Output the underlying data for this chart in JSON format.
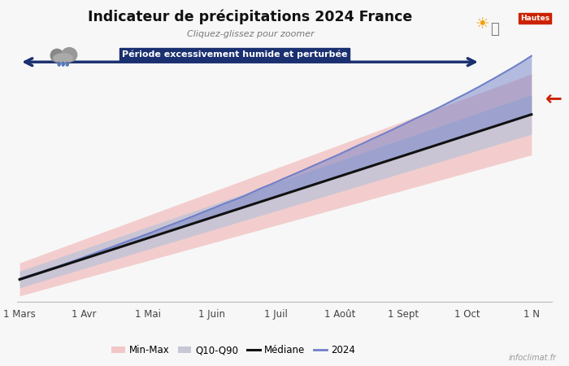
{
  "title": "Indicateur de précipitations 2024 France",
  "subtitle": "Cliquez-glissez pour zoomer",
  "annotation_text": "Période excessivement humide et perturbée",
  "xlabel_ticks": [
    "1 Mars",
    "1 Avr",
    "1 Mai",
    "1 Juin",
    "1 Juil",
    "1 Août",
    "1 Sept",
    "1 Oct",
    "1 N"
  ],
  "legend_labels": [
    "Min-Max",
    "Q10-Q90",
    "Médiane",
    "2024"
  ],
  "color_minmax": "#f2bfbf",
  "color_q1090": "#c5c5d5",
  "color_mediane": "#111111",
  "color_2024": "#7080c8",
  "color_arrow": "#1a3070",
  "background_color": "#f7f7f7",
  "watermark": "infoclimat.fr",
  "n_points": 305
}
